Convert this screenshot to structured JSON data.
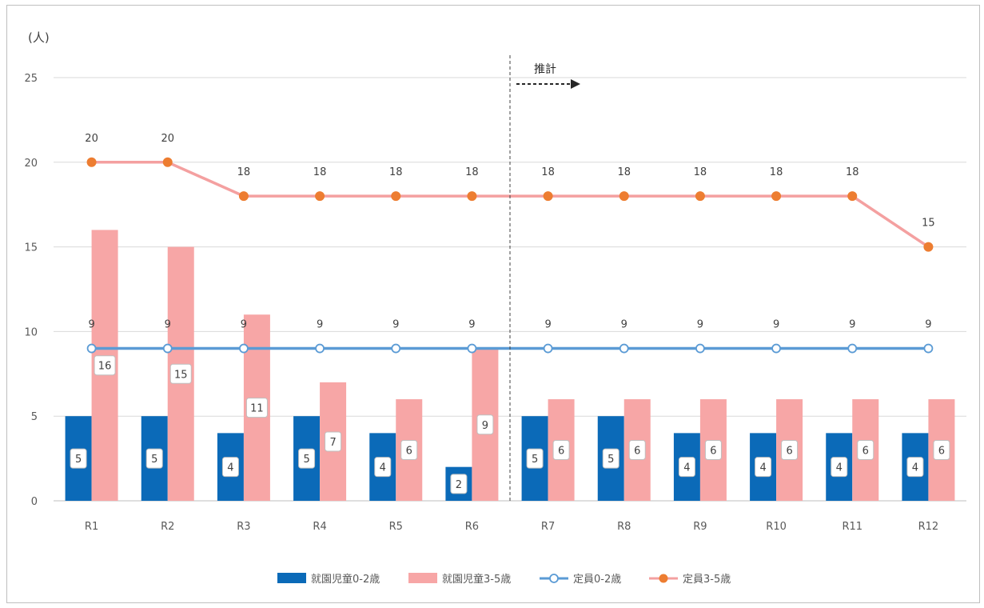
{
  "chart_data": {
    "type": "bar",
    "unit_label": "(人)",
    "categories": [
      "R1",
      "R2",
      "R3",
      "R4",
      "R5",
      "R6",
      "R7",
      "R8",
      "R9",
      "R10",
      "R11",
      "R12"
    ],
    "ylim": [
      0,
      25
    ],
    "yticks": [
      0,
      5,
      10,
      15,
      20,
      25
    ],
    "grid": true,
    "legend_position": "bottom",
    "annotation": "推計",
    "forecast_start_category": "R7",
    "series": [
      {
        "name": "就園児童0-2歳",
        "kind": "bar",
        "color": "#0b6ab8",
        "values": [
          5,
          5,
          4,
          5,
          4,
          2,
          5,
          5,
          4,
          4,
          4,
          4
        ]
      },
      {
        "name": "就園児童3-5歳",
        "kind": "bar",
        "color": "#f7a6a6",
        "values": [
          16,
          15,
          11,
          7,
          6,
          9,
          6,
          6,
          6,
          6,
          6,
          6
        ]
      },
      {
        "name": "定員0-2歳",
        "kind": "line",
        "color": "#5b9bd5",
        "marker": "open-circle",
        "values": [
          9,
          9,
          9,
          9,
          9,
          9,
          9,
          9,
          9,
          9,
          9,
          9
        ]
      },
      {
        "name": "定員3-5歳",
        "kind": "line",
        "color": "#f4a0a0",
        "marker_color": "#ed7d31",
        "marker": "filled-circle",
        "values": [
          20,
          20,
          18,
          18,
          18,
          18,
          18,
          18,
          18,
          18,
          18,
          15
        ]
      }
    ]
  }
}
